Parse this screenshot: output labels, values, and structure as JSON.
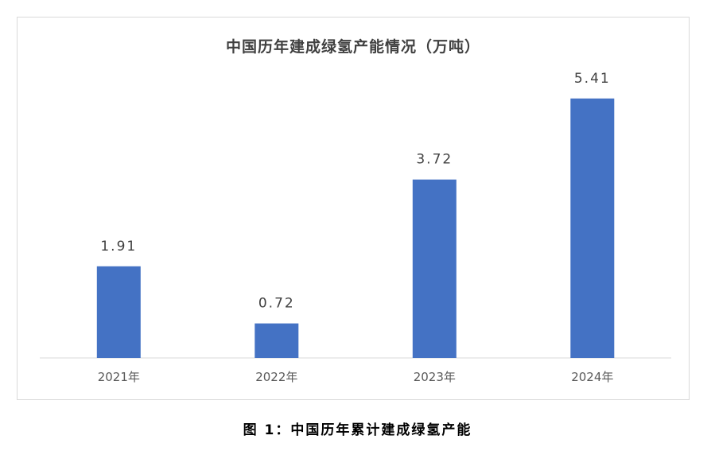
{
  "chart_data": {
    "type": "bar",
    "title": "中国历年建成绿氢产能情况（万吨）",
    "categories": [
      "2021年",
      "2022年",
      "2023年",
      "2024年"
    ],
    "values": [
      1.91,
      0.72,
      3.72,
      5.41
    ],
    "data_labels": [
      "1.91",
      "0.72",
      "3.72",
      "5.41"
    ],
    "xlabel": "",
    "ylabel": "",
    "ylim": [
      0,
      6
    ],
    "grid": false,
    "legend": "none",
    "bar_color": "#4472C4"
  },
  "caption": "图 1：中国历年累计建成绿氢产能"
}
